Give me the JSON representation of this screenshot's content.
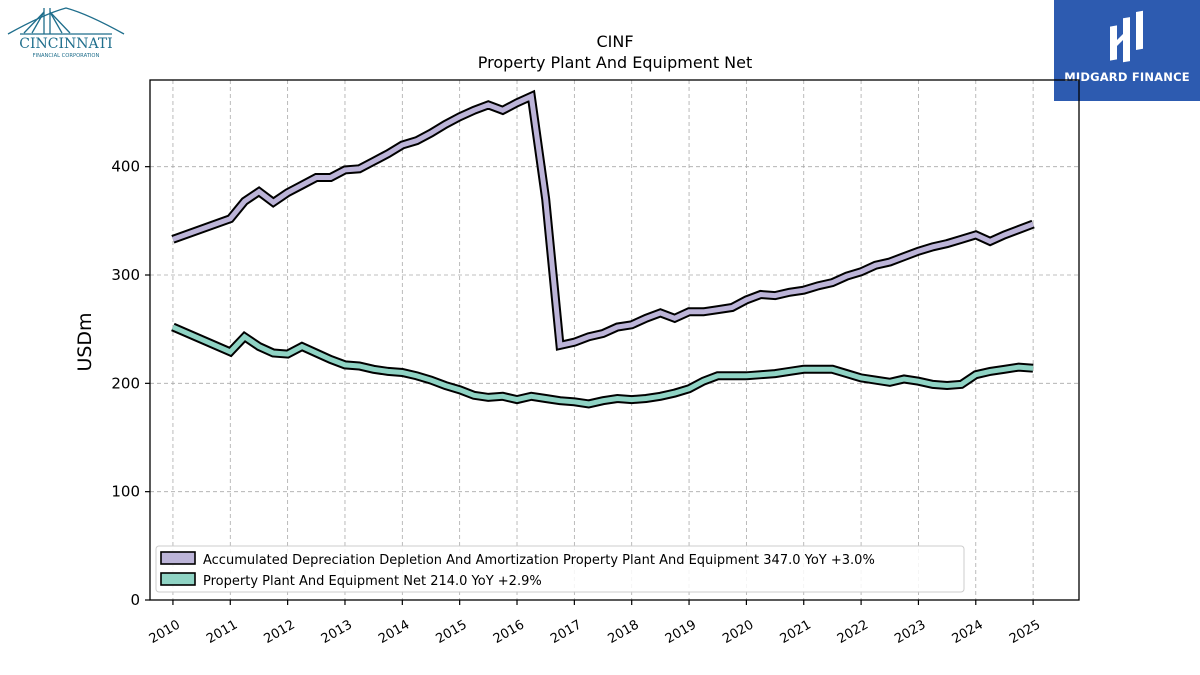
{
  "branding": {
    "company_logo_text": "CINCINNATI",
    "company_logo_subtext": "FINANCIAL CORPORATION",
    "publisher_logo_text": "MIDGARD FINANCE"
  },
  "colors": {
    "series_1": "#bcb4d8",
    "series_2": "#8fd3c4",
    "outline": "#000000",
    "grid": "#aaaaaa",
    "publisher_bg": "#2d5bb0",
    "company_logo": "#1f6e8c"
  },
  "chart_data": {
    "type": "line",
    "title": "CINF",
    "subtitle": "Property Plant And Equipment Net",
    "xlabel": "",
    "ylabel": "USDm",
    "xlim": [
      2009.6,
      2025.8
    ],
    "ylim": [
      0,
      480
    ],
    "x_ticks": [
      2010,
      2011,
      2012,
      2013,
      2014,
      2015,
      2016,
      2017,
      2018,
      2019,
      2020,
      2021,
      2022,
      2023,
      2024,
      2025
    ],
    "y_ticks": [
      0,
      100,
      200,
      300,
      400
    ],
    "grid": true,
    "legend_position": "lower-left",
    "series": [
      {
        "name": "Accumulated Depreciation Depletion And Amortization Property Plant And Equipment",
        "legend_label": "Accumulated Depreciation Depletion And Amortization Property Plant And Equipment  347.0 YoY +3.0%",
        "x": [
          2010.0,
          2011.0,
          2011.25,
          2011.5,
          2011.75,
          2012.0,
          2012.25,
          2012.5,
          2012.75,
          2013.0,
          2013.25,
          2013.5,
          2013.75,
          2014.0,
          2014.25,
          2014.5,
          2014.75,
          2015.0,
          2015.25,
          2015.5,
          2015.75,
          2016.0,
          2016.25,
          2016.5,
          2016.75,
          2017.0,
          2017.25,
          2017.5,
          2017.75,
          2018.0,
          2018.25,
          2018.5,
          2018.75,
          2019.0,
          2019.25,
          2019.5,
          2019.75,
          2020.0,
          2020.25,
          2020.5,
          2020.75,
          2021.0,
          2021.25,
          2021.5,
          2021.75,
          2022.0,
          2022.25,
          2022.5,
          2022.75,
          2023.0,
          2023.25,
          2023.5,
          2023.75,
          2024.0,
          2024.25,
          2024.5,
          2024.75,
          2025.0
        ],
        "y": [
          333,
          352,
          368,
          377,
          367,
          376,
          383,
          390,
          390,
          397,
          398,
          405,
          412,
          420,
          424,
          431,
          439,
          446,
          452,
          457,
          452,
          459,
          465,
          370,
          235,
          238,
          243,
          246,
          252,
          254,
          260,
          265,
          260,
          266,
          266,
          268,
          270,
          277,
          282,
          281,
          284,
          286,
          290,
          293,
          299,
          303,
          309,
          312,
          317,
          322,
          326,
          329,
          333,
          337,
          331,
          337,
          342,
          347
        ]
      },
      {
        "name": "Property Plant And Equipment Net",
        "legend_label": "Property Plant And Equipment Net  214.0 YoY +2.9%",
        "x": [
          2010.0,
          2011.0,
          2011.25,
          2011.5,
          2011.75,
          2012.0,
          2012.25,
          2012.5,
          2012.75,
          2013.0,
          2013.25,
          2013.5,
          2013.75,
          2014.0,
          2014.25,
          2014.5,
          2014.75,
          2015.0,
          2015.25,
          2015.5,
          2015.75,
          2016.0,
          2016.25,
          2016.5,
          2016.75,
          2017.0,
          2017.25,
          2017.5,
          2017.75,
          2018.0,
          2018.25,
          2018.5,
          2018.75,
          2019.0,
          2019.25,
          2019.5,
          2019.75,
          2020.0,
          2020.25,
          2020.5,
          2020.75,
          2021.0,
          2021.25,
          2021.5,
          2021.75,
          2022.0,
          2022.25,
          2022.5,
          2022.75,
          2023.0,
          2023.25,
          2023.5,
          2023.75,
          2024.0,
          2024.25,
          2024.5,
          2024.75,
          2025.0
        ],
        "y": [
          252,
          229,
          243,
          234,
          228,
          227,
          234,
          228,
          222,
          217,
          216,
          213,
          211,
          210,
          207,
          203,
          198,
          194,
          189,
          187,
          188,
          185,
          188,
          186,
          184,
          183,
          181,
          184,
          186,
          185,
          186,
          188,
          191,
          195,
          202,
          207,
          207,
          207,
          208,
          209,
          211,
          213,
          213,
          213,
          209,
          205,
          203,
          201,
          204,
          202,
          199,
          198,
          199,
          208,
          211,
          213,
          215,
          214
        ]
      }
    ]
  }
}
